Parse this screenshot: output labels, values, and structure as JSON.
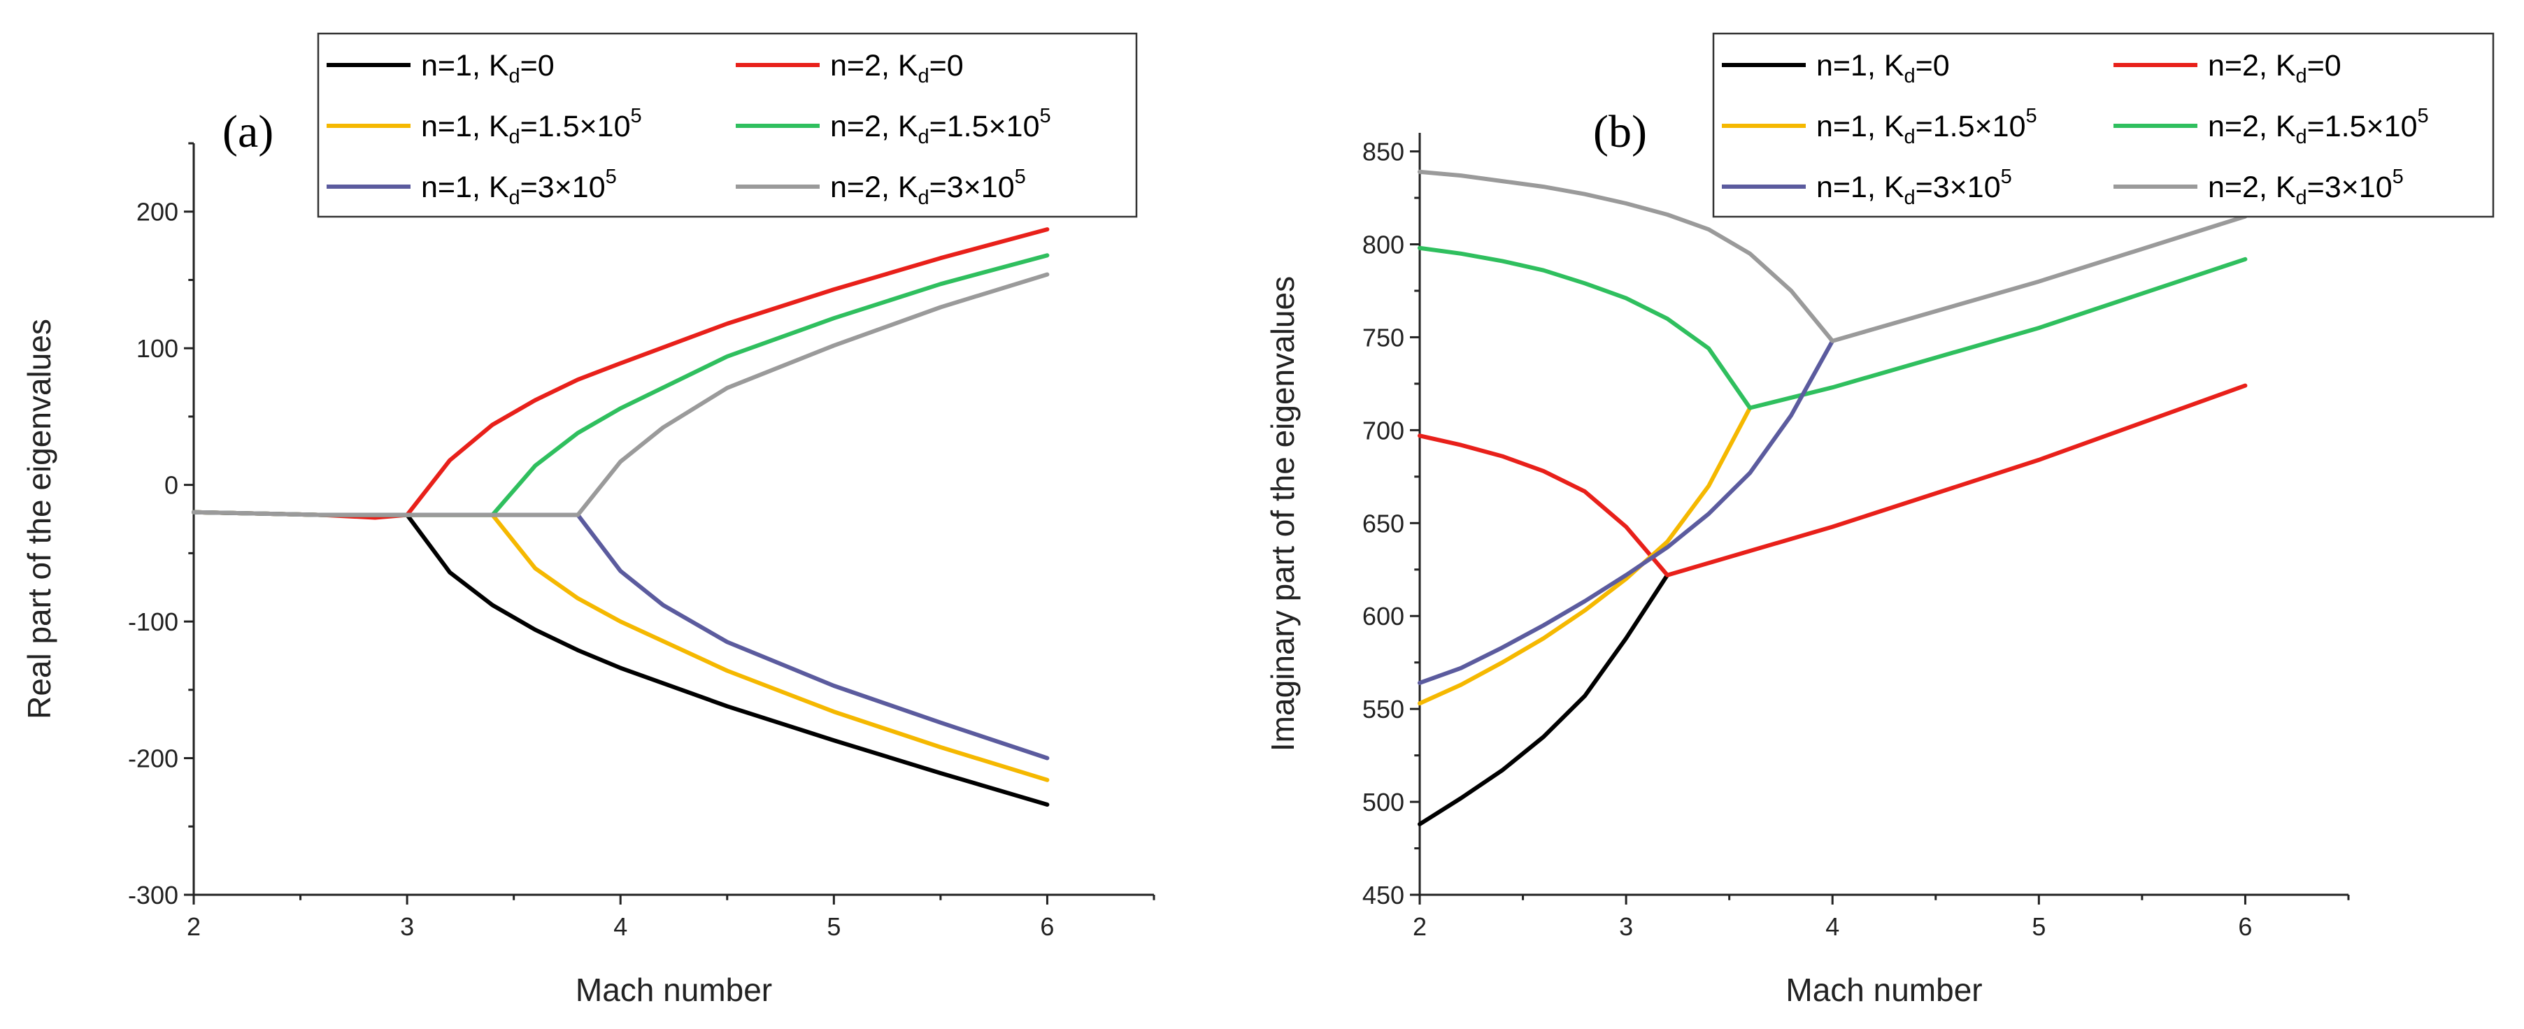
{
  "chart_data": [
    {
      "type": "line",
      "panel_label": "(a)",
      "xlabel": "Mach number",
      "ylabel": "Real part of the eigenvalues",
      "xlim": [
        2,
        6.5
      ],
      "ylim": [
        -300,
        250
      ],
      "xticks": [
        2,
        3,
        4,
        5,
        6
      ],
      "yticks": [
        -300,
        -200,
        -100,
        0,
        100,
        200
      ],
      "legend_position": "top",
      "series": [
        {
          "name": "n=1, K_d=0",
          "color": "#000000",
          "legend": {
            "prefix": "n=1, K",
            "sub": "d",
            "value": "=0",
            "sup": ""
          },
          "x": [
            2,
            2.6,
            3,
            3.2,
            3.4,
            3.6,
            3.8,
            4,
            4.5,
            5,
            5.5,
            6
          ],
          "y": [
            -20,
            -22,
            -22,
            -64,
            -88,
            -106,
            -121,
            -134,
            -162,
            -187,
            -211,
            -234
          ]
        },
        {
          "name": "n=2, K_d=0",
          "color": "#e8201a",
          "legend": {
            "prefix": "n=2, K",
            "sub": "d",
            "value": "=0",
            "sup": ""
          },
          "x": [
            2,
            2.6,
            2.85,
            3,
            3.2,
            3.4,
            3.6,
            3.8,
            4,
            4.5,
            5,
            5.5,
            6
          ],
          "y": [
            -20,
            -22,
            -24,
            -22,
            18,
            44,
            62,
            77,
            89,
            118,
            143,
            166,
            187
          ]
        },
        {
          "name": "n=1, K_d=1.5×10^5",
          "color": "#f5b800",
          "legend": {
            "prefix": "n=1, K",
            "sub": "d",
            "value": "=1.5×10",
            "sup": "5"
          },
          "x": [
            2,
            2.6,
            3,
            3.4,
            3.6,
            3.8,
            4,
            4.5,
            5,
            5.5,
            6
          ],
          "y": [
            -20,
            -22,
            -22,
            -22,
            -61,
            -83,
            -100,
            -136,
            -166,
            -192,
            -216
          ]
        },
        {
          "name": "n=2, K_d=1.5×10^5",
          "color": "#2fbf5e",
          "legend": {
            "prefix": "n=2, K",
            "sub": "d",
            "value": "=1.5×10",
            "sup": "5"
          },
          "x": [
            2,
            2.6,
            3,
            3.4,
            3.6,
            3.8,
            4,
            4.5,
            5,
            5.5,
            6
          ],
          "y": [
            -20,
            -22,
            -22,
            -22,
            14,
            38,
            56,
            94,
            122,
            147,
            168
          ]
        },
        {
          "name": "n=1, K_d=3×10^5",
          "color": "#5b5b9e",
          "legend": {
            "prefix": "n=1, K",
            "sub": "d",
            "value": "=3×10",
            "sup": "5"
          },
          "x": [
            2,
            2.6,
            3,
            3.8,
            4,
            4.2,
            4.5,
            5,
            5.5,
            6
          ],
          "y": [
            -20,
            -22,
            -22,
            -22,
            -63,
            -88,
            -115,
            -147,
            -174,
            -200
          ]
        },
        {
          "name": "n=2, K_d=3×10^5",
          "color": "#9a9a9a",
          "legend": {
            "prefix": "n=2, K",
            "sub": "d",
            "value": "=3×10",
            "sup": "5"
          },
          "x": [
            2,
            2.6,
            3,
            3.8,
            4,
            4.2,
            4.5,
            5,
            5.5,
            6
          ],
          "y": [
            -20,
            -22,
            -22,
            -22,
            17,
            42,
            71,
            102,
            130,
            154
          ]
        }
      ]
    },
    {
      "type": "line",
      "panel_label": "(b)",
      "xlabel": "Mach number",
      "ylabel": "Imaginary part of the eigenvalues",
      "xlim": [
        2,
        6.5
      ],
      "ylim": [
        450,
        860
      ],
      "xticks": [
        2,
        3,
        4,
        5,
        6
      ],
      "yticks": [
        450,
        500,
        550,
        600,
        650,
        700,
        750,
        800,
        850
      ],
      "legend_position": "top",
      "series": [
        {
          "name": "n=1, K_d=0",
          "color": "#000000",
          "legend": {
            "prefix": "n=1, K",
            "sub": "d",
            "value": "=0",
            "sup": ""
          },
          "x": [
            2,
            2.2,
            2.4,
            2.6,
            2.8,
            3,
            3.2
          ],
          "y": [
            488,
            502,
            517,
            535,
            557,
            588,
            622
          ]
        },
        {
          "name": "n=2, K_d=0",
          "color": "#e8201a",
          "legend": {
            "prefix": "n=2, K",
            "sub": "d",
            "value": "=0",
            "sup": ""
          },
          "x": [
            2,
            2.2,
            2.4,
            2.6,
            2.8,
            3,
            3.2,
            4,
            5,
            6
          ],
          "y": [
            697,
            692,
            686,
            678,
            667,
            648,
            622,
            648,
            684,
            724
          ]
        },
        {
          "name": "n=1, K_d=1.5×10^5",
          "color": "#f5b800",
          "legend": {
            "prefix": "n=1, K",
            "sub": "d",
            "value": "=1.5×10",
            "sup": "5"
          },
          "x": [
            2,
            2.2,
            2.4,
            2.6,
            2.8,
            3,
            3.2,
            3.4,
            3.6
          ],
          "y": [
            553,
            563,
            575,
            588,
            603,
            620,
            640,
            670,
            712
          ]
        },
        {
          "name": "n=2, K_d=1.5×10^5",
          "color": "#2fbf5e",
          "legend": {
            "prefix": "n=2, K",
            "sub": "d",
            "value": "=1.5×10",
            "sup": "5"
          },
          "x": [
            2,
            2.2,
            2.4,
            2.6,
            2.8,
            3,
            3.2,
            3.4,
            3.6,
            4,
            5,
            6
          ],
          "y": [
            798,
            795,
            791,
            786,
            779,
            771,
            760,
            744,
            712,
            723,
            755,
            792
          ]
        },
        {
          "name": "n=1, K_d=3×10^5",
          "color": "#5b5b9e",
          "legend": {
            "prefix": "n=1, K",
            "sub": "d",
            "value": "=3×10",
            "sup": "5"
          },
          "x": [
            2,
            2.2,
            2.4,
            2.6,
            2.8,
            3,
            3.2,
            3.4,
            3.6,
            3.8,
            4
          ],
          "y": [
            564,
            572,
            583,
            595,
            608,
            622,
            637,
            655,
            677,
            708,
            748
          ]
        },
        {
          "name": "n=2, K_d=3×10^5",
          "color": "#9a9a9a",
          "legend": {
            "prefix": "n=2, K",
            "sub": "d",
            "value": "=3×10",
            "sup": "5"
          },
          "x": [
            2,
            2.2,
            2.4,
            2.6,
            2.8,
            3,
            3.2,
            3.4,
            3.6,
            3.8,
            4,
            5,
            6
          ],
          "y": [
            839,
            837,
            834,
            831,
            827,
            822,
            816,
            808,
            795,
            775,
            748,
            780,
            815
          ]
        }
      ]
    }
  ]
}
